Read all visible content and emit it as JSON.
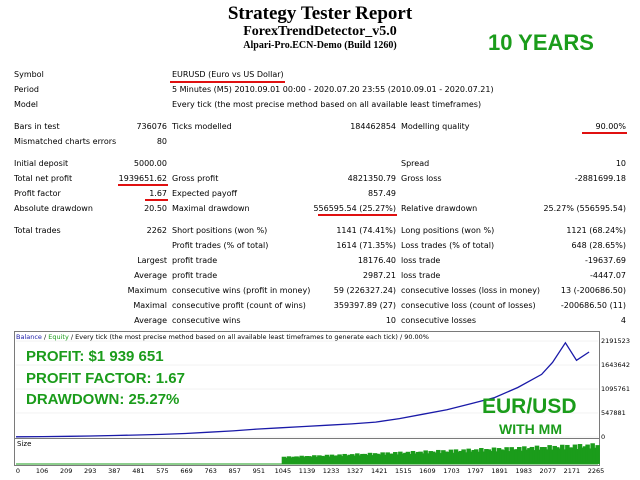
{
  "header": {
    "title": "Strategy Tester Report",
    "expert": "ForexTrendDetector_v5.0",
    "server": "Alpari-Pro.ECN-Demo (Build 1260)",
    "badge": "10 YEARS"
  },
  "info": [
    {
      "label": "Symbol",
      "value": "EURUSD (Euro vs US Dollar)"
    },
    {
      "label": "Period",
      "value": "5 Minutes (M5) 2010.09.01 00:00 - 2020.07.20 23:55 (2010.09.01 - 2020.07.21)"
    },
    {
      "label": "Model",
      "value": "Every tick (the most precise method based on all available least timeframes)"
    }
  ],
  "stats": {
    "bars_in_test": {
      "label": "Bars in test",
      "value": "736076"
    },
    "ticks_modelled": {
      "label": "Ticks modelled",
      "value": "184462854"
    },
    "modelling_quality": {
      "label": "Modelling quality",
      "value": "90.00%"
    },
    "mismatched": {
      "label": "Mismatched charts errors",
      "value": "80"
    },
    "initial_deposit": {
      "label": "Initial deposit",
      "value": "5000.00"
    },
    "spread": {
      "label": "Spread",
      "value": "10"
    },
    "total_net_profit": {
      "label": "Total net profit",
      "value": "1939651.62"
    },
    "gross_profit": {
      "label": "Gross profit",
      "value": "4821350.79"
    },
    "gross_loss": {
      "label": "Gross loss",
      "value": "-2881699.18"
    },
    "profit_factor": {
      "label": "Profit factor",
      "value": "1.67"
    },
    "expected_payoff": {
      "label": "Expected payoff",
      "value": "857.49"
    },
    "absolute_drawdown": {
      "label": "Absolute drawdown",
      "value": "20.50"
    },
    "maximal_drawdown": {
      "label": "Maximal drawdown",
      "value": "556595.54 (25.27%)"
    },
    "relative_drawdown": {
      "label": "Relative drawdown",
      "value": "25.27% (556595.54)"
    },
    "total_trades": {
      "label": "Total trades",
      "value": "2262"
    },
    "short_positions": {
      "label": "Short positions (won %)",
      "value": "1141 (74.41%)"
    },
    "long_positions": {
      "label": "Long positions (won %)",
      "value": "1121 (68.24%)"
    },
    "profit_trades": {
      "label": "Profit trades (% of total)",
      "value": "1614 (71.35%)"
    },
    "loss_trades": {
      "label": "Loss trades (% of total)",
      "value": "648 (28.65%)"
    },
    "largest_label": "Largest",
    "average_label": "Average",
    "maximum_label": "Maximum",
    "maximal_label": "Maximal",
    "average2_label": "Average",
    "largest_profit_trade": {
      "label": "profit trade",
      "value": "18176.40"
    },
    "largest_loss_trade": {
      "label": "loss trade",
      "value": "-19637.69"
    },
    "average_profit_trade": {
      "label": "profit trade",
      "value": "2987.21"
    },
    "average_loss_trade": {
      "label": "loss trade",
      "value": "-4447.07"
    },
    "max_consec_wins": {
      "label": "consecutive wins (profit in money)",
      "value": "59 (226327.24)"
    },
    "max_consec_losses": {
      "label": "consecutive losses (loss in money)",
      "value": "13 (-200686.50)"
    },
    "maximal_consec_profit": {
      "label": "consecutive profit (count of wins)",
      "value": "359397.89 (27)"
    },
    "maximal_consec_loss": {
      "label": "consecutive loss (count of losses)",
      "value": "-200686.50 (11)"
    },
    "avg_consec_wins": {
      "label": "consecutive wins",
      "value": "10"
    },
    "avg_consec_losses": {
      "label": "consecutive losses",
      "value": "4"
    }
  },
  "chart": {
    "legend_balance": "Balance",
    "legend_sep": " / ",
    "legend_equity": "Equity",
    "legend_rest": " / Every tick (the most precise method based on all available least timeframes to generate each tick) / 90.00%",
    "size_label": "Size",
    "overlay_profit_label": "PROFIT:",
    "overlay_profit_value": "$1 939 651",
    "overlay_pf_label": "PROFIT FACTOR:",
    "overlay_pf_value": "1.67",
    "overlay_dd_label": "DRAWDOWN:",
    "overlay_dd_value": "25.27%",
    "pair_label": "EUR/USD",
    "mm_label": "WITH MM",
    "balance_color": "#1a1aa8",
    "equity_color": "#1b9c1b",
    "accent_color": "#e01010"
  },
  "chart_data": {
    "type": "line",
    "x_ticks": [
      "0",
      "106",
      "209",
      "293",
      "387",
      "481",
      "575",
      "669",
      "763",
      "857",
      "951",
      "1045",
      "1139",
      "1233",
      "1327",
      "1421",
      "1515",
      "1609",
      "1703",
      "1797",
      "1891",
      "1983",
      "2077",
      "2171",
      "2265"
    ],
    "y_ticks": [
      "2191523",
      "1643642",
      "1095761",
      "547881",
      "0"
    ],
    "ylim": [
      0,
      2191523
    ],
    "series": [
      {
        "name": "Balance",
        "x": [
          0,
          106,
          209,
          293,
          387,
          481,
          575,
          669,
          763,
          857,
          951,
          1045,
          1139,
          1233,
          1327,
          1421,
          1515,
          1609,
          1703,
          1797,
          1891,
          1983,
          2077,
          2120,
          2171,
          2215,
          2265
        ],
        "values": [
          5000,
          8000,
          15000,
          22000,
          35000,
          45000,
          60000,
          80000,
          110000,
          140000,
          180000,
          210000,
          240000,
          270000,
          300000,
          340000,
          420000,
          520000,
          620000,
          760000,
          900000,
          1130000,
          1430000,
          1700000,
          2150000,
          1750000,
          1939651
        ]
      }
    ]
  }
}
